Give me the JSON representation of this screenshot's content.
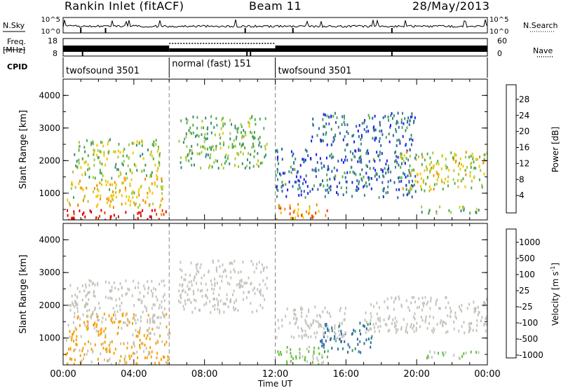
{
  "header": {
    "station": "Rankin Inlet (fitACF)",
    "beam": "Beam 11",
    "date": "28/May/2013"
  },
  "left_labels": {
    "nsky": "N.Sky",
    "freq": "Freq.",
    "freq_unit": "[MHz]",
    "cpid": "CPID"
  },
  "right_labels": {
    "nsearch": "N.Search",
    "nave": "Nave"
  },
  "noise_axis": {
    "left_ticks": [
      "10^5",
      "10^0"
    ],
    "right_ticks": [
      "10^5",
      "10^0"
    ]
  },
  "freq_axis": {
    "left_ticks": [
      "18",
      "8"
    ],
    "right_ticks": [
      "60",
      "0"
    ]
  },
  "cpid_segments": [
    {
      "label": "twofsound 3501",
      "start": 0,
      "end": 6
    },
    {
      "label": "normal (fast) 151",
      "start": 6,
      "end": 12
    },
    {
      "label": "twofsound 3501",
      "start": 12,
      "end": 24
    }
  ],
  "x_axis": {
    "ticks": [
      "00:00",
      "04:00",
      "08:00",
      "12:00",
      "16:00",
      "20:00",
      "00:00"
    ],
    "label": "Time UT"
  },
  "power_panel": {
    "ylabel": "Slant Range [km]",
    "yticks": [
      "1000",
      "2000",
      "3000",
      "4000"
    ],
    "colorbar_title": "Power [dB]",
    "colorbar_ticks": [
      "4",
      "8",
      "12",
      "16",
      "20",
      "24",
      "28"
    ]
  },
  "velocity_panel": {
    "ylabel": "Slant Range [km]",
    "yticks": [
      "1000",
      "2000",
      "3000",
      "4000"
    ],
    "colorbar_title": "Velocity [m s",
    "colorbar_title_sup": "-1",
    "colorbar_title_end": "]",
    "colorbar_ticks": [
      "1000",
      "500",
      "100",
      "25",
      "-25",
      "-100",
      "-500",
      "-1000"
    ]
  },
  "colors": {
    "power_scale": [
      "#1f1fe8",
      "#2f5fb0",
      "#3a8a78",
      "#4fae4a",
      "#a8c83a",
      "#f5c400",
      "#f28a00",
      "#ee3b00",
      "#e00000"
    ],
    "velocity_scale": [
      "#1f3fb0",
      "#2f6aa8",
      "#3a8f72",
      "#5fbf3a",
      "#c4c4bd",
      "#f5a000",
      "#f07800",
      "#e83a00",
      "#e00000"
    ]
  },
  "chart_data": {
    "type": "heatmap",
    "x_range": [
      "00:00",
      "24:00"
    ],
    "y_range_km": [
      180,
      4500
    ],
    "panels": [
      {
        "name": "Power",
        "unit": "dB",
        "range": [
          0,
          30
        ],
        "regions": [
          {
            "t0": 0.1,
            "t1": 6.0,
            "r0": 180,
            "r1": 520,
            "value": 28
          },
          {
            "t0": 0.2,
            "t1": 5.8,
            "r0": 600,
            "r1": 1500,
            "value": 18
          },
          {
            "t0": 0.5,
            "t1": 5.5,
            "r0": 1500,
            "r1": 2700,
            "value": 14
          },
          {
            "t0": 6.5,
            "t1": 11.5,
            "r0": 1800,
            "r1": 3400,
            "value": 12
          },
          {
            "t0": 12.0,
            "t1": 15.0,
            "r0": 200,
            "r1": 700,
            "value": 20
          },
          {
            "t0": 12.0,
            "t1": 20.0,
            "r0": 900,
            "r1": 2400,
            "value": 6
          },
          {
            "t0": 19.0,
            "t1": 24.0,
            "r0": 1100,
            "r1": 2300,
            "value": 16
          },
          {
            "t0": 20.0,
            "t1": 23.5,
            "r0": 400,
            "r1": 650,
            "value": 12
          },
          {
            "t0": 14.0,
            "t1": 20.0,
            "r0": 2500,
            "r1": 3500,
            "value": 6
          }
        ]
      },
      {
        "name": "Velocity",
        "unit": "m s^-1",
        "range": [
          -1000,
          1000
        ],
        "regions": [
          {
            "t0": 0.1,
            "t1": 6.0,
            "r0": 180,
            "r1": 1800,
            "value": 150
          },
          {
            "t0": 0.3,
            "t1": 5.8,
            "r0": 1500,
            "r1": 2800,
            "value": 0
          },
          {
            "t0": 6.5,
            "t1": 11.5,
            "r0": 1800,
            "r1": 3400,
            "value": 0
          },
          {
            "t0": 12.0,
            "t1": 15.0,
            "r0": 200,
            "r1": 800,
            "value": -150
          },
          {
            "t0": 14.5,
            "t1": 17.5,
            "r0": 600,
            "r1": 1500,
            "value": -600
          },
          {
            "t0": 17.0,
            "t1": 24.0,
            "r0": 1200,
            "r1": 2300,
            "value": 0
          },
          {
            "t0": 20.5,
            "t1": 23.5,
            "r0": 400,
            "r1": 650,
            "value": -120
          },
          {
            "t0": 12.0,
            "t1": 16.0,
            "r0": 1000,
            "r1": 2000,
            "value": 0
          }
        ]
      }
    ]
  }
}
